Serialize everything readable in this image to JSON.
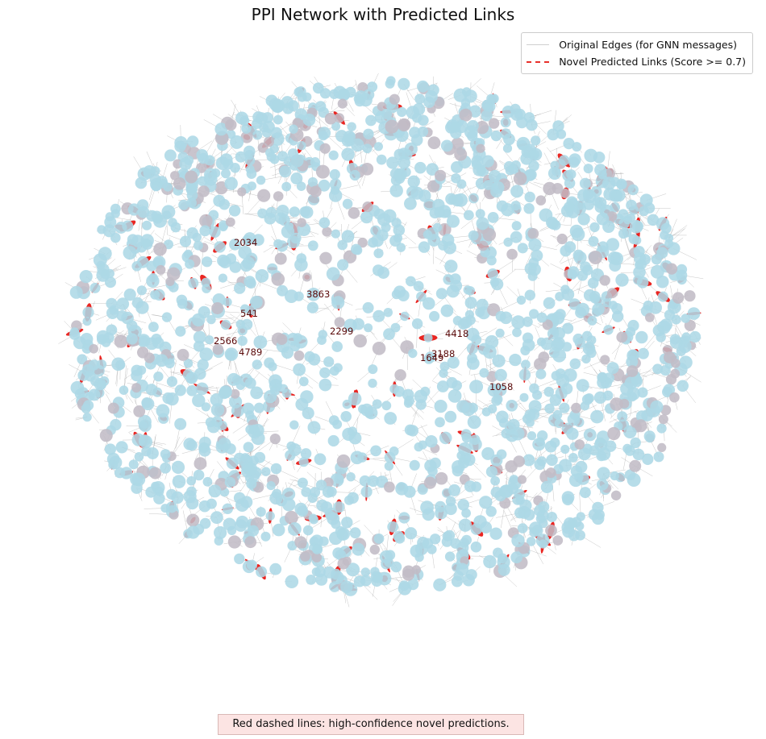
{
  "title": "PPI Network with Predicted Links",
  "legend": {
    "original_edges": "Original Edges (for GNN messages)",
    "predicted_links": "Novel Predicted Links (Score >= 0.7)"
  },
  "footnote": "Red dashed lines: high-confidence novel predictions.",
  "colors": {
    "node": "#add8e6",
    "node_highlight": "#c2bcc6",
    "original_edge": "#7f7f7f",
    "predicted_link": "#e8120e",
    "label": "#5a0a0a"
  },
  "node_labels": [
    "2034",
    "3863",
    "541",
    "2299",
    "4418",
    "2566",
    "4789",
    "3188",
    "1649",
    "1058"
  ]
}
